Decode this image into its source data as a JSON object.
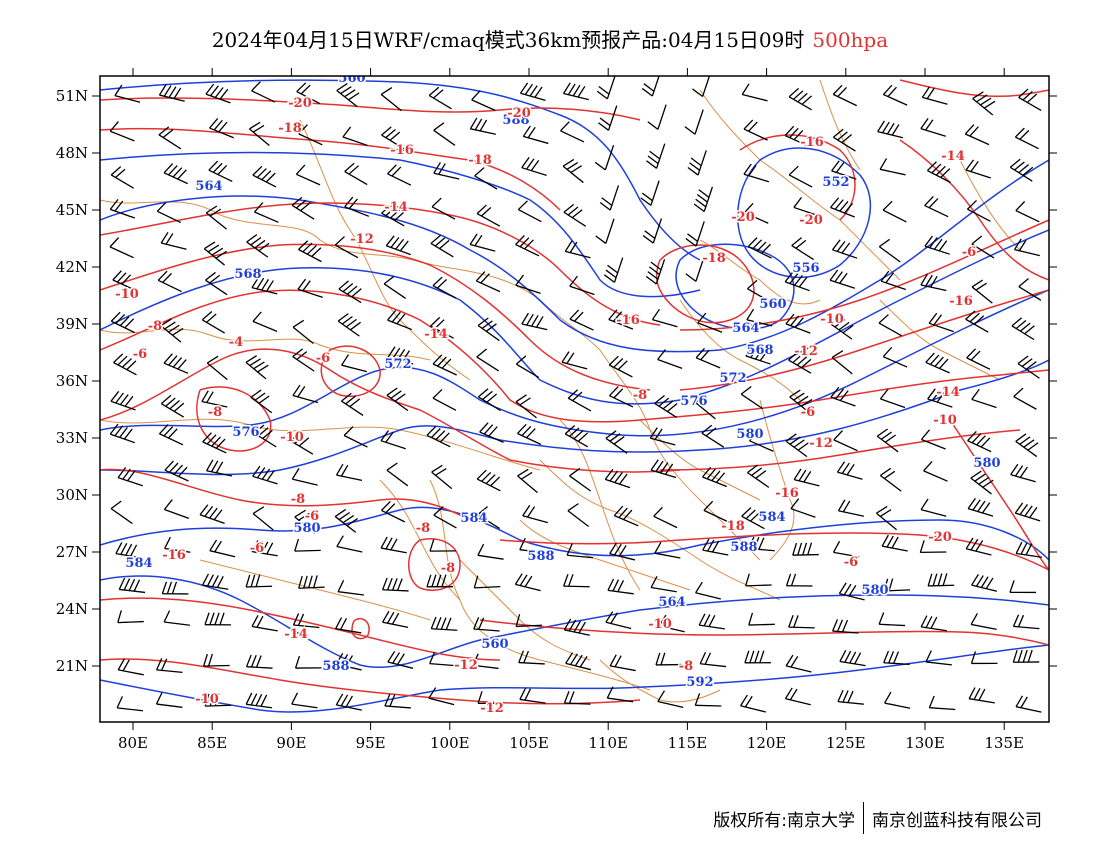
{
  "title": {
    "main": "2024年04月15日WRF/cmaq模式36km预报产品:04月15日09时",
    "level": "500hpa"
  },
  "footer": {
    "copyright": "版权所有:南京大学",
    "company": "南京创蓝科技有限公司"
  },
  "map": {
    "lon_labels": [
      "80E",
      "85E",
      "90E",
      "95E",
      "100E",
      "105E",
      "110E",
      "115E",
      "120E",
      "125E",
      "130E",
      "135E"
    ],
    "lat_labels": [
      "51N",
      "48N",
      "45N",
      "42N",
      "39N",
      "36N",
      "33N",
      "30N",
      "27N",
      "24N",
      "21N"
    ],
    "colors": {
      "height_contour": "#1f3fdc",
      "temp_contour": "#e23232",
      "boundary": "#d9904a",
      "wind_barb": "#000000"
    }
  },
  "height_labels": [
    "560",
    "564",
    "568",
    "572",
    "576",
    "580",
    "584",
    "588",
    "592",
    "552",
    "556",
    "560",
    "564",
    "568",
    "572",
    "576",
    "580",
    "580",
    "584",
    "584",
    "588",
    "588",
    "580",
    "564",
    "560",
    "588"
  ],
  "temp_labels": [
    "-20",
    "-18",
    "-16",
    "-14",
    "-12",
    "-10",
    "-8",
    "-6",
    "-4",
    "-20",
    "-18",
    "-16",
    "-20",
    "-20",
    "-18",
    "-16",
    "-14",
    "-12",
    "-10",
    "-8",
    "-6",
    "-14",
    "-12",
    "-10",
    "-6",
    "-8",
    "-10",
    "-8",
    "-6",
    "-8",
    "-8",
    "-6",
    "-16",
    "-14",
    "-12",
    "-10",
    "-12",
    "-10",
    "-8",
    "-6",
    "-18",
    "-16",
    "-20",
    "-16",
    "-14",
    "-6"
  ]
}
